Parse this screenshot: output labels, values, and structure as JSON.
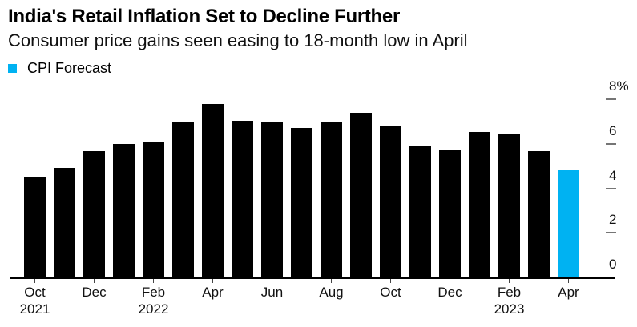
{
  "chart_data": {
    "type": "bar",
    "title": "India's Retail Inflation Set to Decline Further",
    "subtitle": "Consumer price gains seen easing to 18-month low in April",
    "unit": "%",
    "ylim": [
      0,
      8
    ],
    "grid": false,
    "legend_position": "top-left",
    "legend": [
      {
        "label": "CPI Forecast",
        "color": "#00b2f2"
      }
    ],
    "categories": [
      "Oct 2021",
      "Nov 2021",
      "Dec 2021",
      "Jan 2022",
      "Feb 2022",
      "Mar 2022",
      "Apr 2022",
      "May 2022",
      "Jun 2022",
      "Jul 2022",
      "Aug 2022",
      "Sep 2022",
      "Oct 2022",
      "Nov 2022",
      "Dec 2022",
      "Jan 2023",
      "Feb 2023",
      "Mar 2023",
      "Apr 2023"
    ],
    "values": [
      4.48,
      4.91,
      5.66,
      6.01,
      6.07,
      6.95,
      7.79,
      7.04,
      7.01,
      6.71,
      7.0,
      7.41,
      6.77,
      5.88,
      5.72,
      6.52,
      6.44,
      5.66,
      4.8
    ],
    "forecast_index": 18,
    "y_ticks": [
      {
        "value": 0,
        "label": "0"
      },
      {
        "value": 2,
        "label": "2"
      },
      {
        "value": 4,
        "label": "4"
      },
      {
        "value": 6,
        "label": "6"
      },
      {
        "value": 8,
        "label": "8%"
      }
    ],
    "x_ticks": [
      {
        "index": 0,
        "label": "Oct",
        "year": "2021"
      },
      {
        "index": 2,
        "label": "Dec",
        "year": ""
      },
      {
        "index": 4,
        "label": "Feb",
        "year": "2022"
      },
      {
        "index": 6,
        "label": "Apr",
        "year": ""
      },
      {
        "index": 8,
        "label": "Jun",
        "year": ""
      },
      {
        "index": 10,
        "label": "Aug",
        "year": ""
      },
      {
        "index": 12,
        "label": "Oct",
        "year": ""
      },
      {
        "index": 14,
        "label": "Dec",
        "year": ""
      },
      {
        "index": 16,
        "label": "Feb",
        "year": "2023"
      },
      {
        "index": 18,
        "label": "Apr",
        "year": ""
      }
    ],
    "colors": {
      "bar": "#000000",
      "forecast": "#00b2f2",
      "axis_line": "#000000",
      "x_tick": "#444444",
      "y_dash": "#757575"
    }
  }
}
